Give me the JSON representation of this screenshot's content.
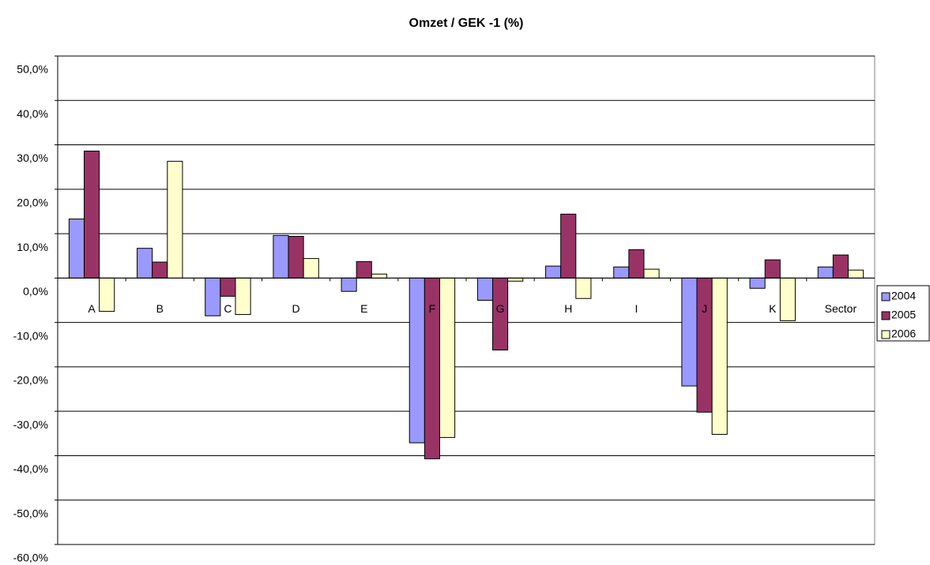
{
  "chart_data": {
    "type": "bar",
    "title": "Omzet / GEK -1 (%)",
    "categories": [
      "A",
      "B",
      "C",
      "D",
      "E",
      "F",
      "G",
      "H",
      "I",
      "J",
      "K",
      "Sector"
    ],
    "series": [
      {
        "name": "2004",
        "color": "#9999ff",
        "values": [
          13.3,
          6.7,
          -8.5,
          9.6,
          -3.0,
          -37.1,
          -5.0,
          2.7,
          2.5,
          -24.3,
          -2.3,
          2.5
        ]
      },
      {
        "name": "2005",
        "color": "#993366",
        "values": [
          28.6,
          3.6,
          -4.1,
          9.4,
          3.7,
          -40.7,
          -16.2,
          14.4,
          6.4,
          -30.2,
          4.1,
          5.2
        ]
      },
      {
        "name": "2006",
        "color": "#ffffcc",
        "values": [
          -7.5,
          26.3,
          -8.2,
          4.4,
          0.9,
          -35.9,
          -0.7,
          -4.6,
          2.0,
          -35.2,
          -9.6,
          1.8
        ]
      }
    ],
    "ylim": [
      -60,
      50
    ],
    "yticks": [
      {
        "value": 50,
        "label": "50,0%"
      },
      {
        "value": 40,
        "label": "40,0%"
      },
      {
        "value": 30,
        "label": "30,0%"
      },
      {
        "value": 20,
        "label": "20,0%"
      },
      {
        "value": 10,
        "label": "10,0%"
      },
      {
        "value": 0,
        "label": "0,0%"
      },
      {
        "value": -10,
        "label": "-10,0%"
      },
      {
        "value": -20,
        "label": "-20,0%"
      },
      {
        "value": -30,
        "label": "-30,0%"
      },
      {
        "value": -40,
        "label": "-40,0%"
      },
      {
        "value": -50,
        "label": "-50,0%"
      },
      {
        "value": -60,
        "label": "-60,0%"
      }
    ],
    "grid": true,
    "legend": "right"
  }
}
